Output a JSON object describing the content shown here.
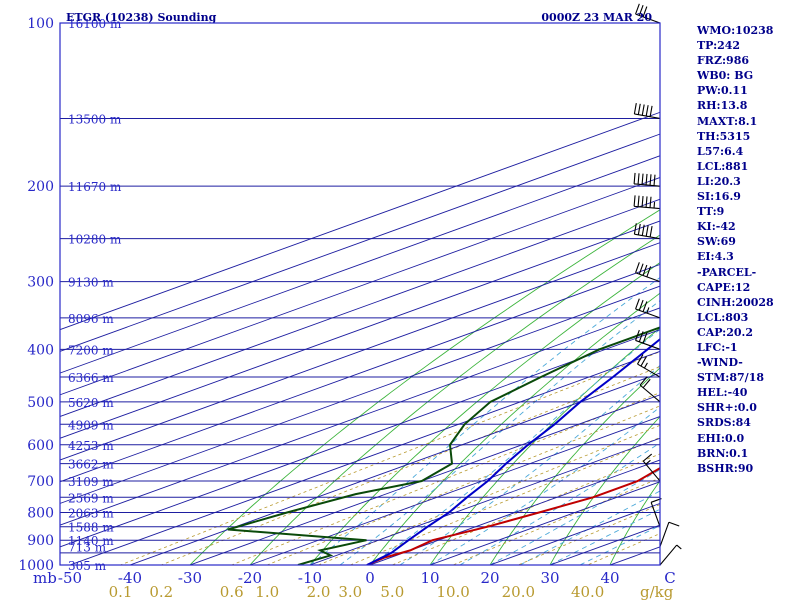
{
  "header": {
    "left_title": "ETGR (10238) Sounding",
    "right_title": "0000Z 23 MAR 20"
  },
  "indices": [
    "WMO:10238",
    "TP:242",
    "FRZ:986",
    "WB0: BG",
    "PW:0.11",
    "RH:13.8",
    "MAXT:8.1",
    "TH:5315",
    "L57:6.4",
    "LCL:881",
    "LI:20.3",
    "SI:16.9",
    "TT:9",
    "KI:-42",
    "SW:69",
    "EI:4.3",
    "-PARCEL-",
    "CAPE:12",
    "CINH:20028",
    "LCL:803",
    "CAP:20.2",
    "LFC:-1",
    "-WIND-",
    "STM:87/18",
    "HEL:-40",
    "SHR+:0.0",
    "SRDS:84",
    "EHI:0.0",
    "BRN:0.1",
    "BSHR:90"
  ],
  "colors": {
    "isobar": "#1e1ea0",
    "isotherm": "#1e1ea0",
    "dry_adiabat": "#3cb43c",
    "moist_adiabat": "#4aa8d8",
    "mixing_ratio": "#b89a30",
    "temperature": "#c00000",
    "dewpoint": "#0a4a0a",
    "virtual_profile": "#0000c8",
    "text": "#2828c8",
    "frame": "#2828c8"
  },
  "chart_data": {
    "type": "skew-t log-p sounding",
    "y_axis": {
      "scale": "log",
      "unit": "mb",
      "range": [
        1000,
        100
      ],
      "ticks": [
        100,
        200,
        300,
        400,
        500,
        600,
        700,
        800,
        900,
        1000
      ]
    },
    "x_axis": {
      "unit": "°C",
      "range": [
        -50,
        50
      ],
      "ticks": [
        -50,
        -40,
        -30,
        -20,
        -10,
        0,
        10,
        20,
        30,
        40,
        50
      ],
      "tick_labels": [
        "-50",
        "-40",
        "-30",
        "-20",
        "-10",
        "0",
        "10",
        "20",
        "30",
        "40",
        "C"
      ]
    },
    "y_unit_label": "mb",
    "height_labels": [
      {
        "p": 100,
        "label": "16100 m"
      },
      {
        "p": 150,
        "label": "13500 m"
      },
      {
        "p": 200,
        "label": "11670 m"
      },
      {
        "p": 250,
        "label": "10280 m"
      },
      {
        "p": 300,
        "label": "9130 m"
      },
      {
        "p": 350,
        "label": "8096 m"
      },
      {
        "p": 400,
        "label": "7200 m"
      },
      {
        "p": 450,
        "label": "6366 m"
      },
      {
        "p": 500,
        "label": "5620 m"
      },
      {
        "p": 550,
        "label": "4909 m"
      },
      {
        "p": 600,
        "label": "4253 m"
      },
      {
        "p": 650,
        "label": "3662 m"
      },
      {
        "p": 700,
        "label": "3109 m"
      },
      {
        "p": 750,
        "label": "2569 m"
      },
      {
        "p": 800,
        "label": "2063 m"
      },
      {
        "p": 850,
        "label": "1588 m"
      },
      {
        "p": 900,
        "label": "1140 m"
      },
      {
        "p": 925,
        "label": "713 m"
      },
      {
        "p": 1000,
        "label": "305 m"
      }
    ],
    "mixing_ratio_labels": [
      {
        "w": 0.1,
        "label": "0.1"
      },
      {
        "w": 0.2,
        "label": "0.2"
      },
      {
        "w": 0.6,
        "label": "0.6"
      },
      {
        "w": 1.0,
        "label": "1.0"
      },
      {
        "w": 2.0,
        "label": "2.0"
      },
      {
        "w": 3.0,
        "label": "3.0"
      },
      {
        "w": 5.0,
        "label": "5.0"
      },
      {
        "w": 10.0,
        "label": "10.0"
      },
      {
        "w": 20.0,
        "label": "20.0"
      },
      {
        "w": 40.0,
        "label": "40.0"
      }
    ],
    "mixing_ratio_unit": "g/kg",
    "series": [
      {
        "key": "temperature",
        "points": [
          [
            1000,
            -0.5
          ],
          [
            970,
            -1
          ],
          [
            940,
            0
          ],
          [
            900,
            -1
          ],
          [
            850,
            2
          ],
          [
            800,
            4
          ],
          [
            750,
            6
          ],
          [
            700,
            6
          ],
          [
            650,
            3
          ],
          [
            600,
            0
          ],
          [
            550,
            -3
          ],
          [
            500,
            -6
          ],
          [
            450,
            -12
          ],
          [
            400,
            -18
          ],
          [
            350,
            -26
          ],
          [
            300,
            -34
          ],
          [
            270,
            -40
          ],
          [
            250,
            -49
          ],
          [
            240,
            -50
          ],
          [
            220,
            -43
          ],
          [
            200,
            -36
          ],
          [
            150,
            -23
          ],
          [
            100,
            -15
          ]
        ]
      },
      {
        "key": "dewpoint",
        "points": [
          [
            1000,
            -12
          ],
          [
            960,
            -11
          ],
          [
            940,
            -15
          ],
          [
            900,
            -12
          ],
          [
            860,
            -40
          ],
          [
            800,
            -38
          ],
          [
            740,
            -35
          ],
          [
            700,
            -30
          ],
          [
            650,
            -33
          ],
          [
            600,
            -42
          ],
          [
            550,
            -49
          ],
          [
            500,
            -55
          ],
          [
            450,
            -58
          ],
          [
            400,
            -61
          ],
          [
            350,
            -61
          ],
          [
            300,
            -63
          ],
          [
            270,
            -68
          ],
          [
            250,
            -70
          ],
          [
            220,
            -71
          ],
          [
            200,
            -76
          ],
          [
            150,
            -74
          ],
          [
            100,
            -70
          ]
        ]
      },
      {
        "key": "virtual_profile",
        "points": [
          [
            1000,
            -0.5
          ],
          [
            950,
            -2
          ],
          [
            900,
            -5
          ],
          [
            850,
            -8
          ],
          [
            800,
            -11
          ],
          [
            750,
            -15
          ],
          [
            700,
            -19
          ],
          [
            650,
            -24
          ],
          [
            600,
            -29
          ],
          [
            550,
            -34
          ],
          [
            500,
            -40
          ],
          [
            450,
            -46
          ],
          [
            400,
            -53
          ],
          [
            350,
            -61
          ],
          [
            300,
            -70
          ],
          [
            250,
            -80
          ],
          [
            200,
            -90
          ],
          [
            150,
            -100
          ],
          [
            100,
            -112
          ]
        ]
      }
    ],
    "wind_barbs": [
      {
        "p": 100,
        "dir": 290,
        "spd": 30
      },
      {
        "p": 150,
        "dir": 280,
        "spd": 50
      },
      {
        "p": 200,
        "dir": 275,
        "spd": 60
      },
      {
        "p": 220,
        "dir": 275,
        "spd": 55
      },
      {
        "p": 250,
        "dir": 280,
        "spd": 50
      },
      {
        "p": 300,
        "dir": 290,
        "spd": 40
      },
      {
        "p": 350,
        "dir": 290,
        "spd": 35
      },
      {
        "p": 400,
        "dir": 290,
        "spd": 30
      },
      {
        "p": 450,
        "dir": 300,
        "spd": 25
      },
      {
        "p": 500,
        "dir": 310,
        "spd": 20
      },
      {
        "p": 700,
        "dir": 320,
        "spd": 15
      },
      {
        "p": 850,
        "dir": 340,
        "spd": 10
      },
      {
        "p": 925,
        "dir": 20,
        "spd": 10
      },
      {
        "p": 1000,
        "dir": 40,
        "spd": 5
      }
    ]
  }
}
